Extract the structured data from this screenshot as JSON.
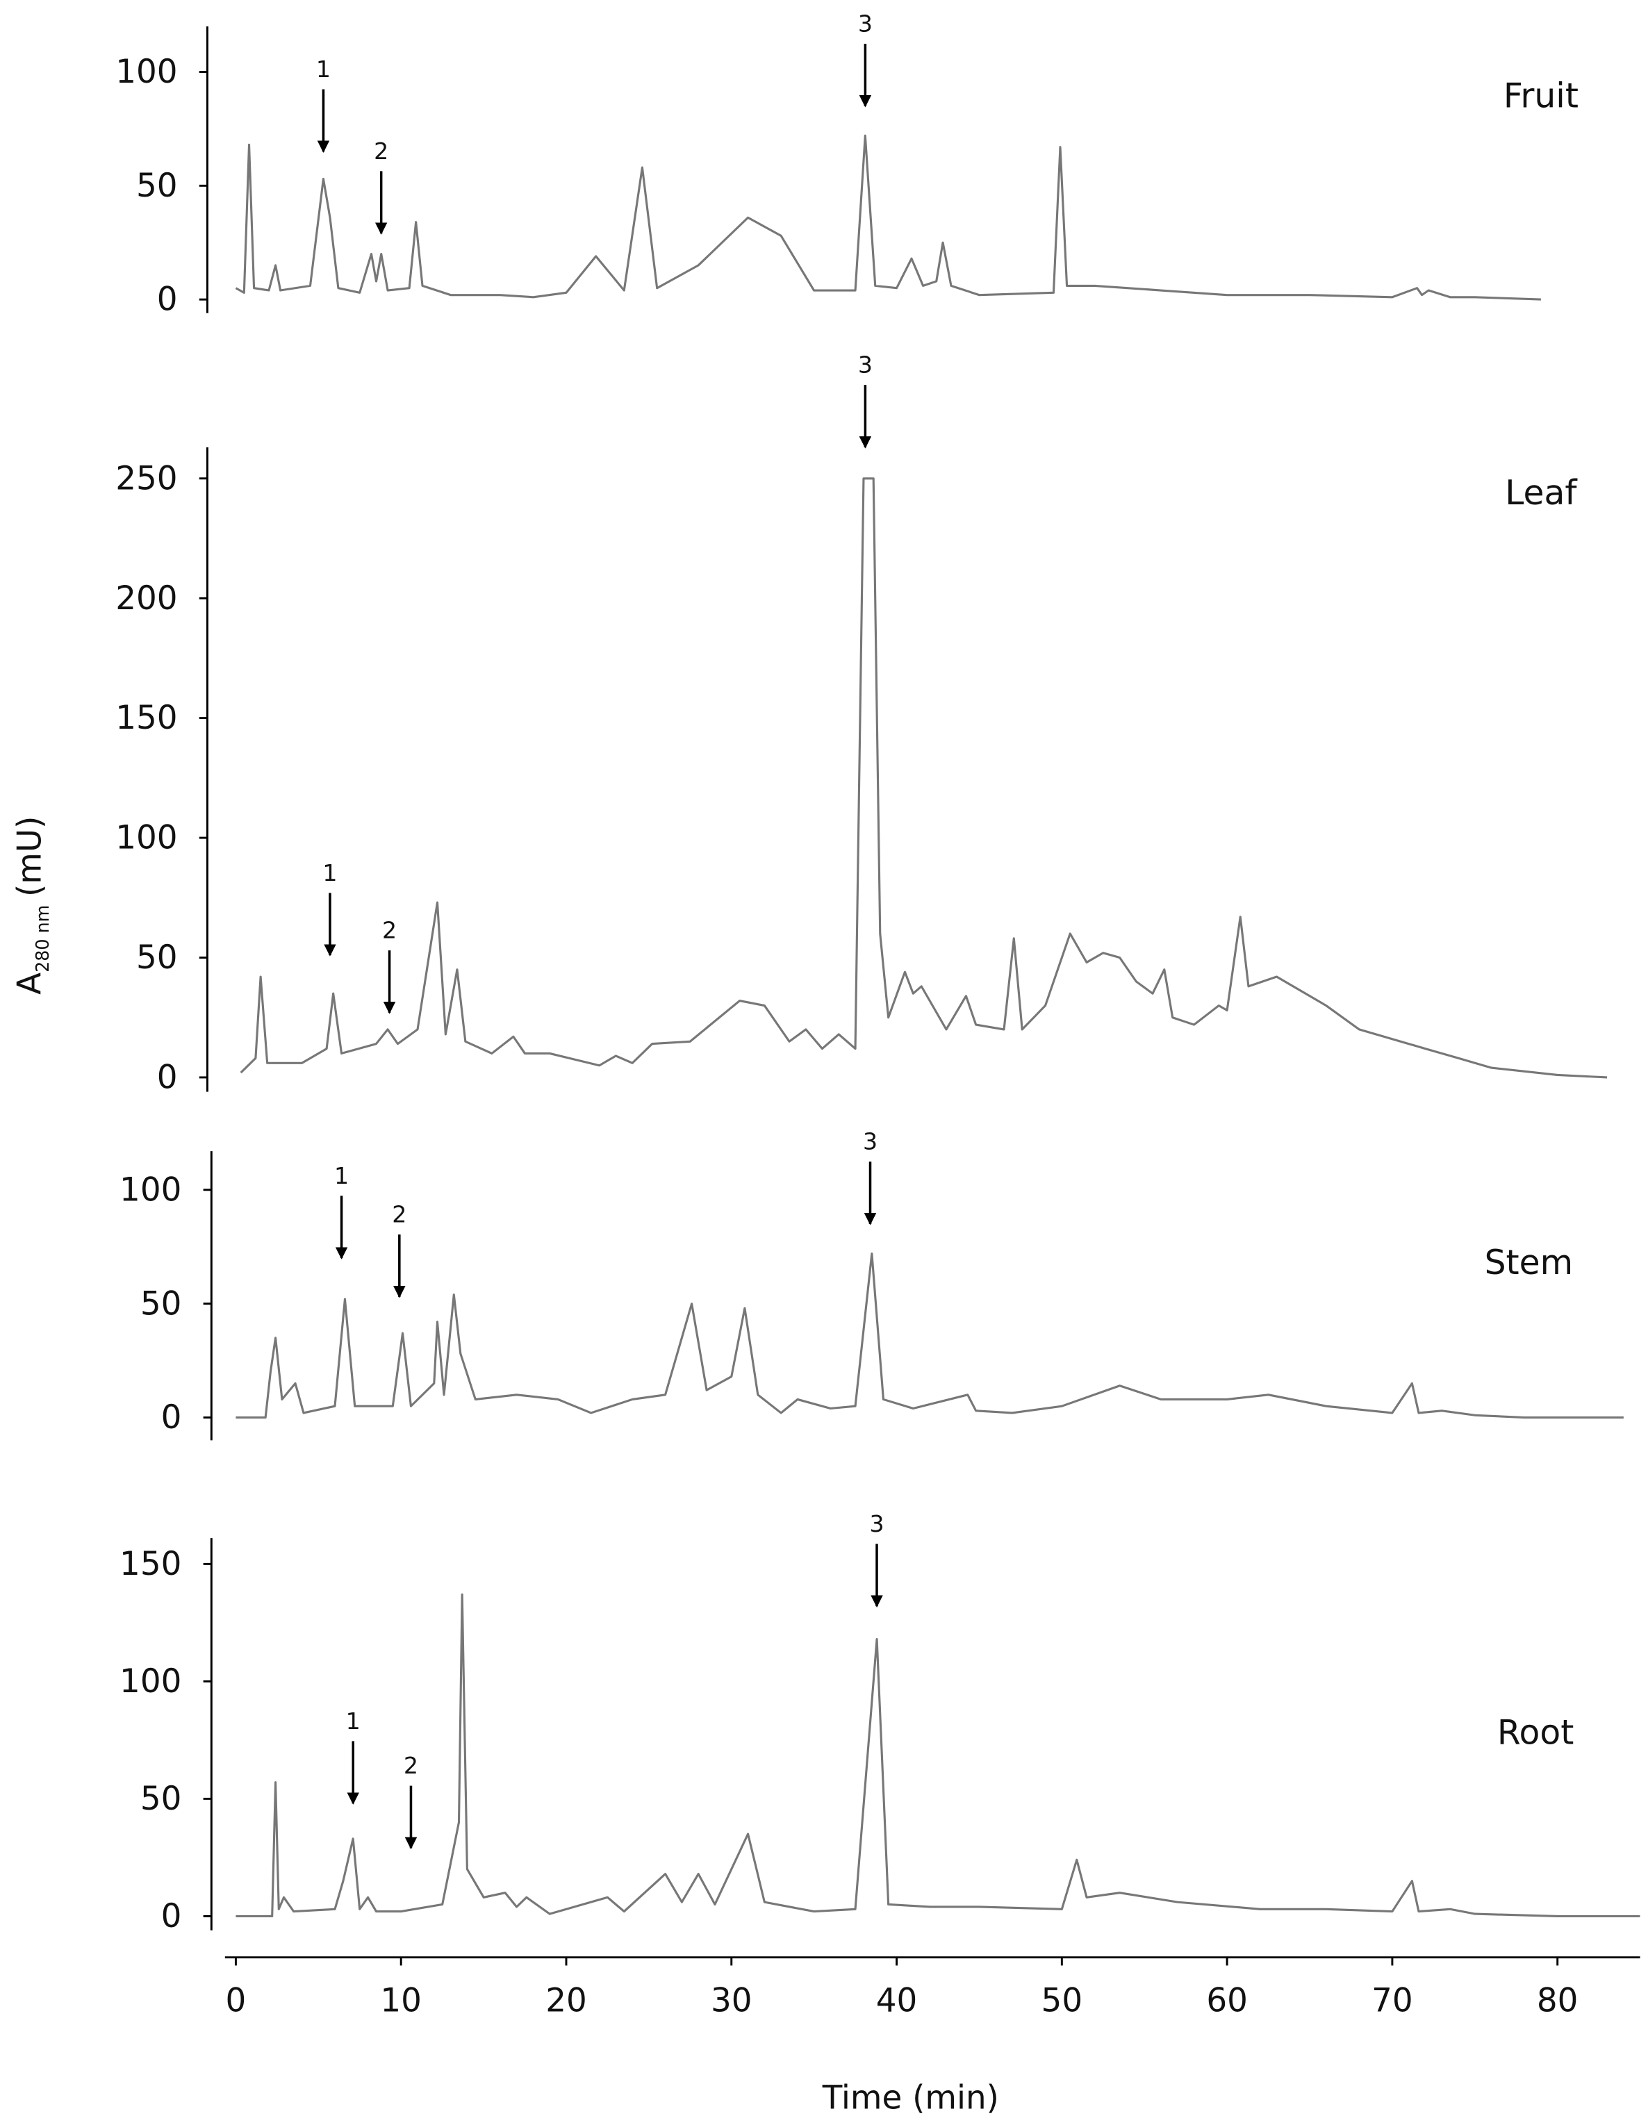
{
  "chart_data": [
    {
      "type": "line",
      "title": "Fruit",
      "color": "#777777",
      "x": [
        0,
        0.5,
        0.8,
        1.1,
        2.0,
        2.4,
        2.7,
        4.5,
        5.3,
        5.7,
        6.2,
        7.5,
        8.2,
        8.5,
        8.8,
        9.2,
        10.5,
        10.9,
        11.3,
        13,
        16,
        18,
        20,
        21.8,
        23.5,
        24.6,
        25.5,
        28,
        31,
        33,
        35,
        37.5,
        38.1,
        38.7,
        40,
        40.9,
        41.6,
        42.4,
        42.8,
        43.3,
        45,
        49.5,
        49.9,
        50.3,
        52,
        56,
        60,
        65,
        70,
        71.5,
        71.8,
        72.2,
        73.5,
        75,
        79
      ],
      "values": [
        5,
        3,
        68,
        5,
        4,
        15,
        4,
        6,
        53,
        36,
        5,
        3,
        20,
        8,
        20,
        4,
        5,
        34,
        6,
        2,
        2,
        1,
        3,
        19,
        4,
        58,
        5,
        15,
        36,
        28,
        4,
        4,
        72,
        6,
        5,
        18,
        6,
        8,
        25,
        6,
        2,
        3,
        67,
        6,
        6,
        4,
        2,
        2,
        1,
        5,
        2,
        4,
        1,
        1,
        0
      ],
      "ylim": [
        -6,
        120
      ],
      "yticks": [
        0,
        50,
        100
      ],
      "annotations": [
        {
          "text": "1",
          "x": 5.3,
          "y": 65
        },
        {
          "text": "2",
          "x": 8.8,
          "y": 29
        },
        {
          "text": "3",
          "x": 38.1,
          "y": 85
        }
      ]
    },
    {
      "type": "line",
      "title": "Leaf",
      "color": "#777777",
      "ylabel": {
        "text": "A",
        "sub": "280 nm",
        "unit": "(mU)"
      },
      "x": [
        0.3,
        1.2,
        1.5,
        1.9,
        4,
        5.5,
        5.9,
        6.4,
        8.5,
        9.2,
        9.8,
        11,
        12.2,
        12.7,
        13.4,
        13.9,
        15.5,
        16.8,
        17.5,
        19,
        22,
        23,
        24,
        25.2,
        27.5,
        30.5,
        32,
        33.5,
        34.5,
        35.5,
        36.5,
        37.5,
        38,
        38.6,
        39,
        39.5,
        40.5,
        41,
        41.5,
        43,
        44.2,
        44.8,
        46.5,
        47.1,
        47.6,
        49,
        50.5,
        51.5,
        52.5,
        53.5,
        54.5,
        55.5,
        56.2,
        56.7,
        58,
        59.5,
        60,
        60.8,
        61.3,
        63,
        66,
        68,
        70,
        72,
        74,
        76,
        80,
        83
      ],
      "values": [
        2,
        8,
        42,
        6,
        6,
        12,
        35,
        10,
        14,
        20,
        14,
        20,
        73,
        18,
        45,
        15,
        10,
        17,
        10,
        10,
        5,
        9,
        6,
        14,
        15,
        32,
        30,
        15,
        20,
        12,
        18,
        12,
        250,
        250,
        60,
        25,
        44,
        35,
        38,
        20,
        34,
        22,
        20,
        58,
        20,
        30,
        60,
        48,
        52,
        50,
        40,
        35,
        45,
        25,
        22,
        30,
        28,
        67,
        38,
        42,
        30,
        20,
        16,
        12,
        8,
        4,
        1,
        0
      ],
      "ylim": [
        -6,
        263
      ],
      "yticks": [
        0,
        50,
        100,
        150,
        200,
        250
      ],
      "annotations": [
        {
          "text": "1",
          "x": 5.7,
          "y": 51
        },
        {
          "text": "2",
          "x": 9.3,
          "y": 27
        },
        {
          "text": "3",
          "x": 38.1,
          "y": 263
        }
      ]
    },
    {
      "type": "line",
      "title": "Stem",
      "color": "#777777",
      "x": [
        0,
        1.8,
        2.1,
        2.4,
        2.8,
        3.6,
        4.1,
        6,
        6.6,
        7.2,
        9.5,
        10.1,
        10.6,
        12,
        12.2,
        12.6,
        13.2,
        13.6,
        14.5,
        17,
        19.5,
        21.5,
        24,
        26,
        27.6,
        28.5,
        30,
        30.8,
        31.6,
        33,
        34,
        36,
        37.5,
        38.5,
        39.2,
        41,
        44.3,
        44.8,
        47,
        50,
        53.5,
        56,
        60,
        62.5,
        66,
        70,
        71.2,
        71.6,
        73,
        75,
        78,
        84
      ],
      "values": [
        0,
        0,
        20,
        35,
        8,
        15,
        2,
        5,
        52,
        5,
        5,
        37,
        5,
        15,
        42,
        10,
        54,
        28,
        8,
        10,
        8,
        2,
        8,
        10,
        50,
        12,
        18,
        48,
        10,
        2,
        8,
        4,
        5,
        72,
        8,
        4,
        10,
        3,
        2,
        5,
        14,
        8,
        8,
        10,
        5,
        2,
        15,
        2,
        3,
        1,
        0,
        0
      ],
      "ylim": [
        -10,
        117
      ],
      "yticks": [
        0,
        50,
        100
      ],
      "annotations": [
        {
          "text": "1",
          "x": 6.4,
          "y": 70
        },
        {
          "text": "2",
          "x": 9.9,
          "y": 53
        },
        {
          "text": "3",
          "x": 38.4,
          "y": 85
        }
      ]
    },
    {
      "type": "line",
      "title": "Root",
      "color": "#777777",
      "x": [
        0,
        2.2,
        2.4,
        2.6,
        2.9,
        3.5,
        6,
        6.5,
        7.1,
        7.5,
        8,
        8.5,
        10,
        12.5,
        13.5,
        13.7,
        14,
        15,
        16.3,
        17,
        17.6,
        19,
        22.5,
        23.5,
        26,
        27,
        28,
        29,
        31,
        32,
        35,
        37.5,
        38.8,
        39.5,
        42,
        45,
        50,
        50.9,
        51.5,
        53.5,
        57,
        62,
        66,
        70,
        71.2,
        71.6,
        73.5,
        75,
        80,
        85
      ],
      "values": [
        0,
        0,
        57,
        3,
        8,
        2,
        3,
        15,
        33,
        3,
        8,
        2,
        2,
        5,
        40,
        137,
        20,
        8,
        10,
        4,
        8,
        1,
        8,
        2,
        18,
        6,
        18,
        5,
        35,
        6,
        2,
        3,
        118,
        5,
        4,
        4,
        3,
        24,
        8,
        10,
        6,
        3,
        3,
        2,
        15,
        2,
        3,
        1,
        0,
        0
      ],
      "ylim": [
        -6,
        161
      ],
      "yticks": [
        0,
        50,
        100,
        150
      ],
      "xlim": [
        0,
        85
      ],
      "xticks": [
        0,
        10,
        20,
        30,
        40,
        50,
        60,
        70,
        80
      ],
      "xlabel": "Time (min)",
      "annotations": [
        {
          "text": "1",
          "x": 7.1,
          "y": 48
        },
        {
          "text": "2",
          "x": 10.6,
          "y": 29
        },
        {
          "text": "3",
          "x": 38.8,
          "y": 132
        }
      ]
    }
  ]
}
